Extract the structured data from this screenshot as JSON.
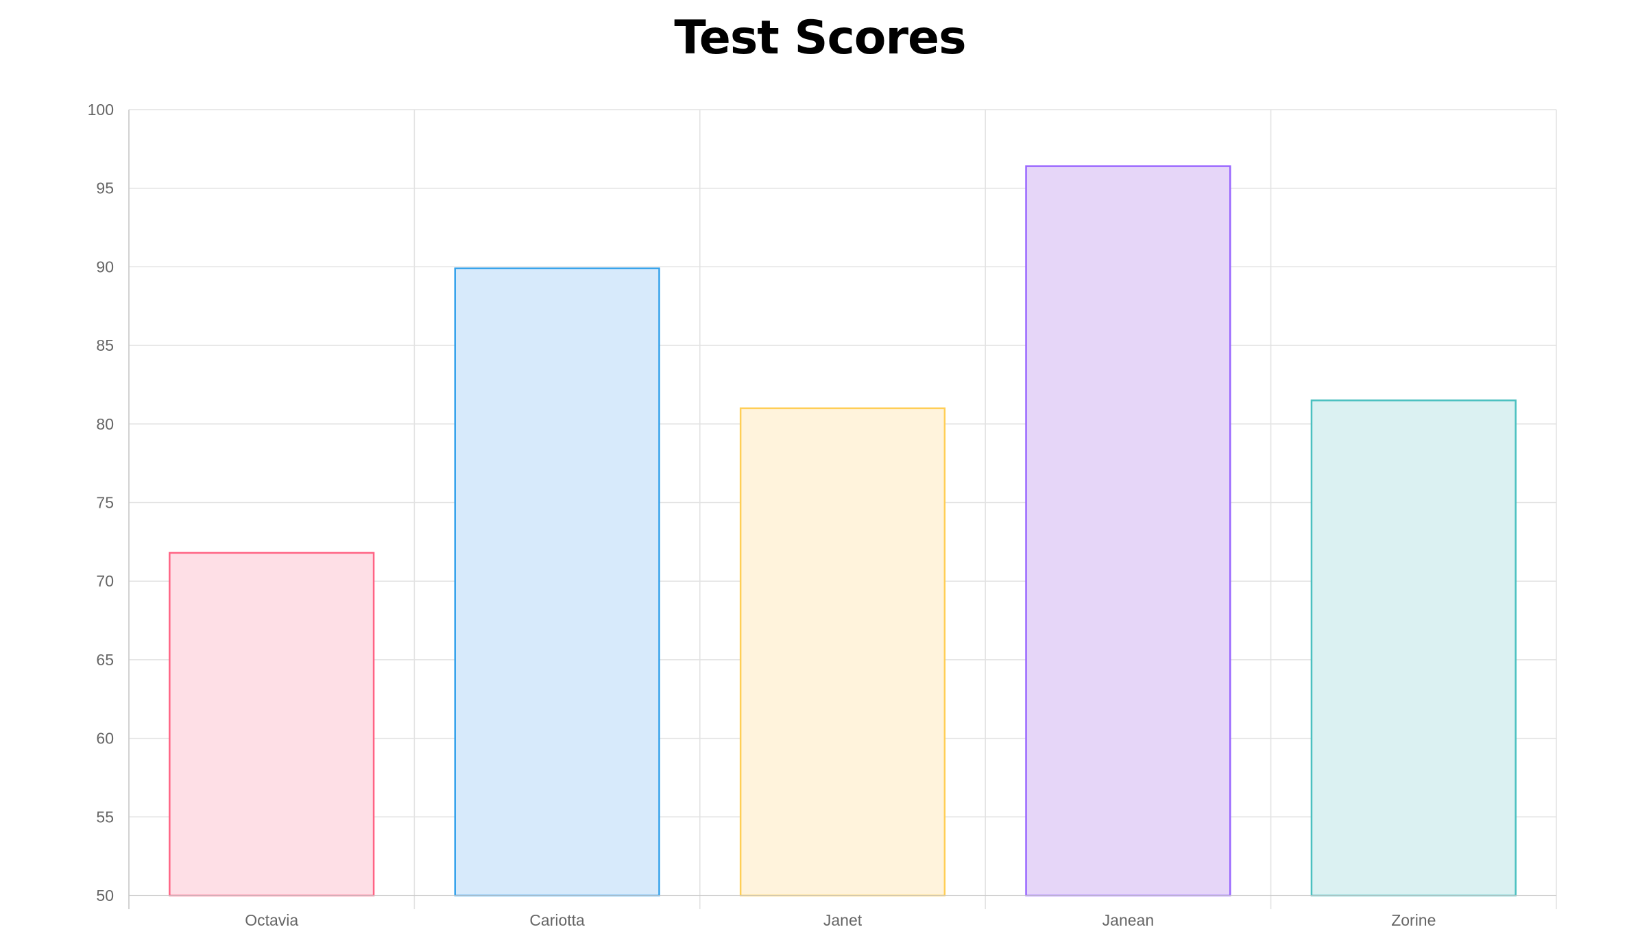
{
  "chart_data": {
    "type": "bar",
    "title": "Test Scores",
    "xlabel": "",
    "ylabel": "",
    "categories": [
      "Octavia",
      "Cariotta",
      "Janet",
      "Janean",
      "Zorine"
    ],
    "values": [
      71.8,
      89.9,
      81.0,
      96.4,
      81.5
    ],
    "ylim": [
      50,
      100
    ],
    "yticks": [
      "50",
      "55",
      "60",
      "65",
      "70",
      "75",
      "80",
      "85",
      "90",
      "95",
      "100"
    ],
    "grid": true,
    "legend": "none",
    "colors": {
      "border": [
        "#ff6384",
        "#36a2eb",
        "#ffce56",
        "#9966ff",
        "#4bc0c0"
      ],
      "fill": [
        "#fedfe6",
        "#d7eafb",
        "#fff3dc",
        "#e6d6f8",
        "#dbf1f2"
      ],
      "grid": "#e2e2e2",
      "axis": "#c8c8c8",
      "tick_text": "#666666"
    }
  }
}
